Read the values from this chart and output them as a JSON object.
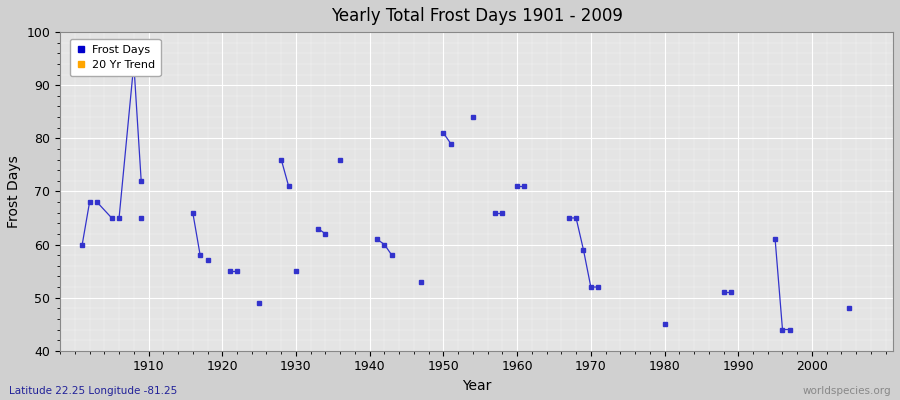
{
  "title": "Yearly Total Frost Days 1901 - 2009",
  "xlabel": "Year",
  "ylabel": "Frost Days",
  "xlim": [
    1898,
    2011
  ],
  "ylim": [
    40,
    100
  ],
  "yticks": [
    40,
    50,
    60,
    70,
    80,
    90,
    100
  ],
  "xticks": [
    1910,
    1920,
    1930,
    1940,
    1950,
    1960,
    1970,
    1980,
    1990,
    2000
  ],
  "subtitle": "Latitude 22.25 Longitude -81.25",
  "watermark": "worldspecies.org",
  "line_color": "#3333cc",
  "background_color": "#e4e4e4",
  "grid_major_color": "#ffffff",
  "legend_frost_color": "#0000cc",
  "legend_trend_color": "#ffa500",
  "connected_groups": [
    [
      [
        1901,
        60
      ],
      [
        1902,
        68
      ]
    ],
    [
      [
        1903,
        68
      ],
      [
        1905,
        65
      ]
    ],
    [
      [
        1906,
        65
      ],
      [
        1908,
        94
      ]
    ],
    [
      [
        1908,
        94
      ],
      [
        1909,
        72
      ]
    ],
    [
      [
        1909,
        65
      ]
    ],
    [
      [
        1916,
        66
      ],
      [
        1917,
        58
      ]
    ],
    [
      [
        1918,
        57
      ]
    ],
    [
      [
        1921,
        55
      ],
      [
        1922,
        55
      ]
    ],
    [
      [
        1925,
        49
      ]
    ],
    [
      [
        1928,
        76
      ],
      [
        1929,
        71
      ]
    ],
    [
      [
        1930,
        55
      ]
    ],
    [
      [
        1933,
        63
      ],
      [
        1934,
        62
      ]
    ],
    [
      [
        1936,
        76
      ]
    ],
    [
      [
        1941,
        61
      ],
      [
        1942,
        60
      ],
      [
        1943,
        58
      ]
    ],
    [
      [
        1947,
        53
      ]
    ],
    [
      [
        1950,
        81
      ],
      [
        1951,
        79
      ]
    ],
    [
      [
        1954,
        84
      ]
    ],
    [
      [
        1957,
        66
      ],
      [
        1958,
        66
      ]
    ],
    [
      [
        1960,
        71
      ],
      [
        1961,
        71
      ]
    ],
    [
      [
        1967,
        65
      ],
      [
        1968,
        65
      ],
      [
        1969,
        59
      ],
      [
        1970,
        52
      ],
      [
        1971,
        52
      ]
    ],
    [
      [
        1980,
        45
      ]
    ],
    [
      [
        1988,
        51
      ],
      [
        1989,
        51
      ]
    ],
    [
      [
        1995,
        61
      ],
      [
        1996,
        44
      ],
      [
        1997,
        44
      ]
    ],
    [
      [
        2005,
        48
      ]
    ]
  ]
}
